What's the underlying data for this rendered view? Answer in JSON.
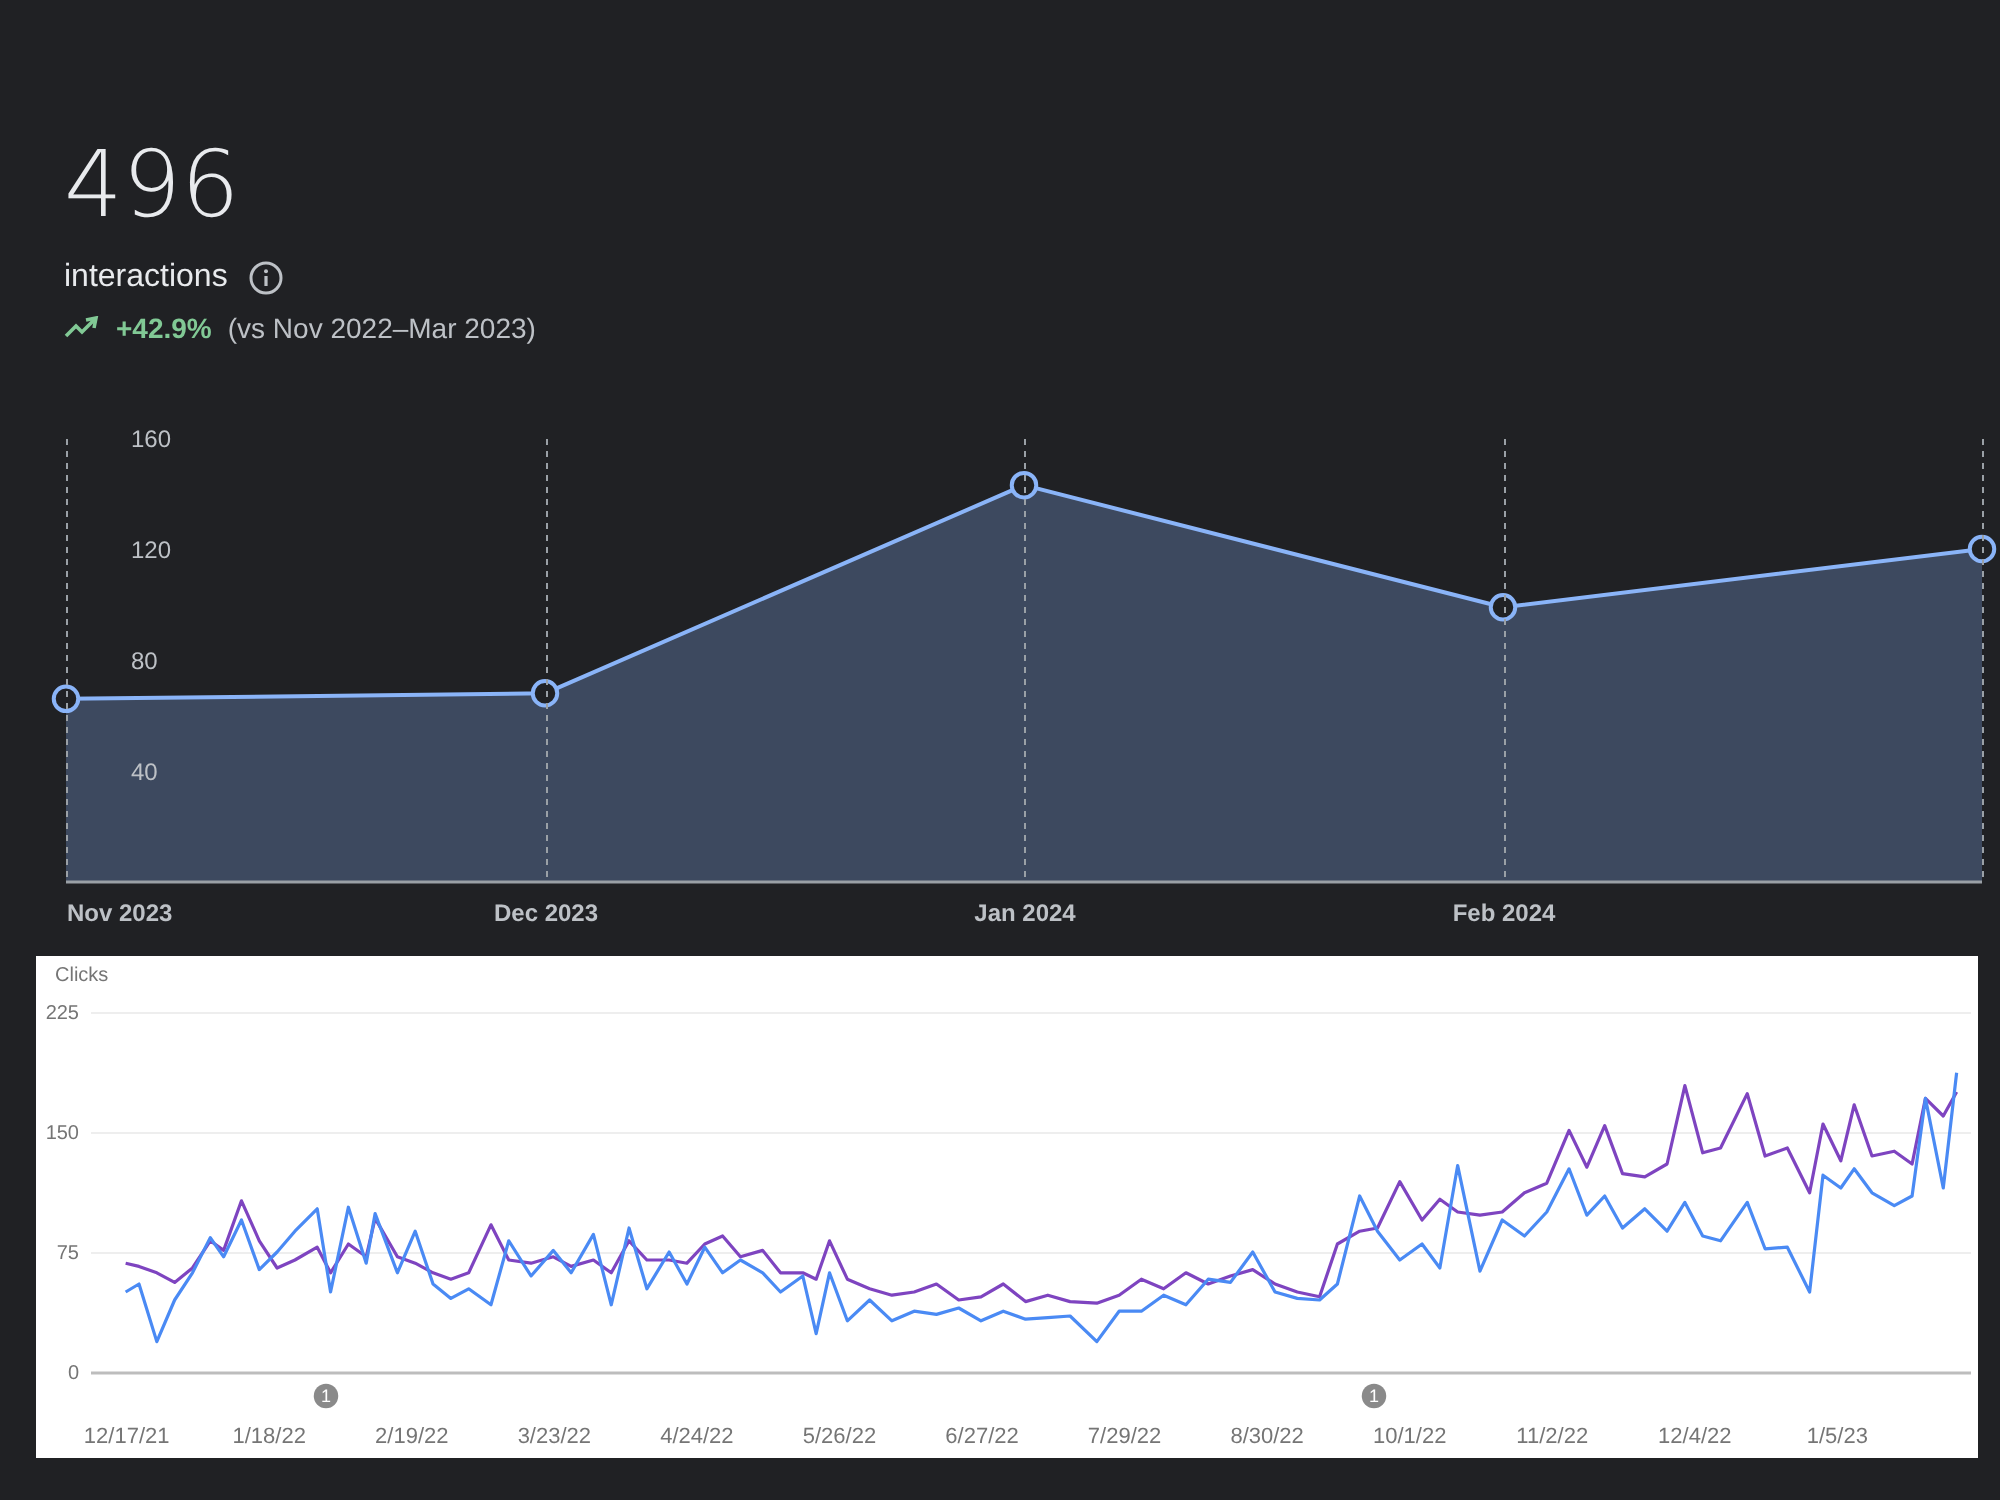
{
  "chart_data": [
    {
      "type": "area",
      "title": "496",
      "subtitle": "interactions",
      "annotations": [
        "+42.9%",
        "(vs Nov 2022–Mar 2023)"
      ],
      "categories": [
        "Nov 2023",
        "Dec 2023",
        "Jan 2024",
        "Feb 2024",
        null
      ],
      "values": [
        66,
        68,
        143,
        99,
        120
      ],
      "color": "#8ab4f8",
      "ylim": [
        0,
        160
      ],
      "yticks": [
        40,
        80,
        120,
        160
      ],
      "grid": "x",
      "marker": "circle"
    },
    {
      "type": "line",
      "ylabel": "Clicks",
      "x": [
        "2021-12-17",
        "2021-12-20",
        "2021-12-24",
        "2021-12-28",
        "2022-01-01",
        "2022-01-05",
        "2022-01-08",
        "2022-01-12",
        "2022-01-16",
        "2022-01-20",
        "2022-01-24",
        "2022-01-29",
        "2022-02-01",
        "2022-02-05",
        "2022-02-09",
        "2022-02-11",
        "2022-02-16",
        "2022-02-20",
        "2022-02-24",
        "2022-02-28",
        "2022-03-04",
        "2022-03-09",
        "2022-03-13",
        "2022-03-18",
        "2022-03-23",
        "2022-03-27",
        "2022-04-01",
        "2022-04-05",
        "2022-04-09",
        "2022-04-13",
        "2022-04-18",
        "2022-04-22",
        "2022-04-26",
        "2022-04-30",
        "2022-05-04",
        "2022-05-09",
        "2022-05-13",
        "2022-05-18",
        "2022-05-21",
        "2022-05-24",
        "2022-05-28",
        "2022-06-02",
        "2022-06-07",
        "2022-06-12",
        "2022-06-17",
        "2022-06-22",
        "2022-06-27",
        "2022-07-02",
        "2022-07-07",
        "2022-07-12",
        "2022-07-17",
        "2022-07-23",
        "2022-07-28",
        "2022-08-02",
        "2022-08-07",
        "2022-08-12",
        "2022-08-17",
        "2022-08-22",
        "2022-08-27",
        "2022-09-01",
        "2022-09-06",
        "2022-09-11",
        "2022-09-15",
        "2022-09-20",
        "2022-09-24",
        "2022-09-29",
        "2022-10-04",
        "2022-10-08",
        "2022-10-12",
        "2022-10-17",
        "2022-10-22",
        "2022-10-27",
        "2022-11-01",
        "2022-11-06",
        "2022-11-10",
        "2022-11-14",
        "2022-11-18",
        "2022-11-23",
        "2022-11-28",
        "2022-12-02",
        "2022-12-06",
        "2022-12-10",
        "2022-12-16",
        "2022-12-20",
        "2022-12-25",
        "2022-12-30",
        "2023-01-02",
        "2023-01-06",
        "2023-01-09",
        "2023-01-13",
        "2023-01-18",
        "2023-01-22",
        "2023-01-25",
        "2023-01-29",
        "2023-02-01"
      ],
      "series": [
        {
          "color": "#7e44c0",
          "values": [
            68,
            66,
            62,
            56,
            65,
            82,
            76,
            107,
            82,
            65,
            70,
            78,
            62,
            80,
            72,
            96,
            72,
            68,
            62,
            58,
            62,
            92,
            70,
            68,
            72,
            66,
            70,
            62,
            82,
            70,
            70,
            68,
            80,
            85,
            72,
            76,
            62,
            62,
            58,
            82,
            58,
            52,
            48,
            50,
            55,
            45,
            47,
            55,
            44,
            48,
            44,
            43,
            48,
            58,
            52,
            62,
            55,
            60,
            64,
            55,
            50,
            47,
            80,
            88,
            90,
            119,
            95,
            108,
            100,
            98,
            100,
            112,
            118,
            151,
            128,
            154,
            124,
            122,
            130,
            179,
            137,
            140,
            174,
            135,
            140,
            112,
            155,
            132,
            167,
            135,
            138,
            130,
            171,
            160,
            175
          ]
        },
        {
          "color": "#4a8af4",
          "values": [
            50,
            55,
            19,
            45,
            62,
            84,
            72,
            95,
            64,
            75,
            88,
            102,
            50,
            103,
            68,
            99,
            62,
            88,
            55,
            46,
            52,
            42,
            82,
            60,
            76,
            62,
            86,
            42,
            90,
            52,
            75,
            55,
            78,
            62,
            70,
            62,
            50,
            60,
            24,
            62,
            32,
            45,
            32,
            38,
            36,
            40,
            32,
            38,
            33,
            34,
            35,
            19,
            38,
            38,
            48,
            42,
            58,
            56,
            75,
            50,
            46,
            45,
            55,
            110,
            88,
            70,
            80,
            65,
            129,
            63,
            95,
            85,
            100,
            127,
            98,
            110,
            90,
            102,
            88,
            106,
            85,
            82,
            106,
            77,
            78,
            50,
            123,
            115,
            127,
            112,
            104,
            110,
            171,
            115,
            187
          ]
        }
      ],
      "xlim": [
        "2021-12-09",
        "2023-02-04"
      ],
      "xticks": [
        {
          "value": "2021-12-17",
          "label": "12/17/21"
        },
        {
          "value": "2022-01-18",
          "label": "1/18/22"
        },
        {
          "value": "2022-02-19",
          "label": "2/19/22"
        },
        {
          "value": "2022-03-23",
          "label": "3/23/22"
        },
        {
          "value": "2022-04-24",
          "label": "4/24/22"
        },
        {
          "value": "2022-05-26",
          "label": "5/26/22"
        },
        {
          "value": "2022-06-27",
          "label": "6/27/22"
        },
        {
          "value": "2022-07-29",
          "label": "7/29/22"
        },
        {
          "value": "2022-08-30",
          "label": "8/30/22"
        },
        {
          "value": "2022-10-01",
          "label": "10/1/22"
        },
        {
          "value": "2022-11-02",
          "label": "11/2/22"
        },
        {
          "value": "2022-12-04",
          "label": "12/4/22"
        },
        {
          "value": "2023-01-05",
          "label": "1/5/23"
        }
      ],
      "ylim": [
        0,
        225
      ],
      "yticks": [
        0,
        75,
        150,
        225
      ],
      "grid": "y",
      "annotations": [
        "1",
        "1"
      ]
    }
  ]
}
